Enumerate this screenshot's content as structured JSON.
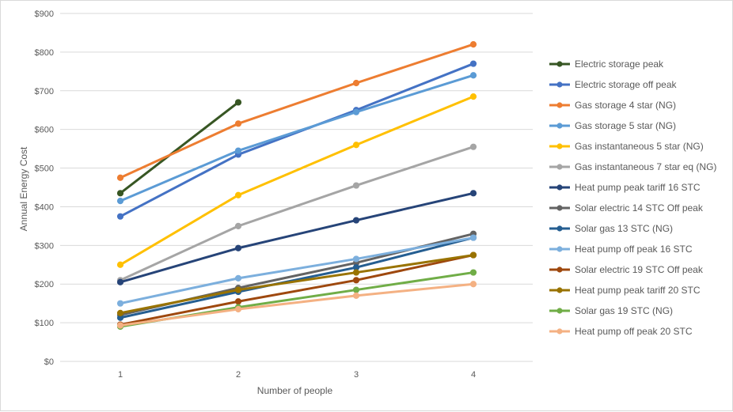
{
  "chart_data": {
    "type": "line",
    "title": "",
    "xlabel": "Number of people",
    "ylabel": "Annual Energy Cost",
    "x": [
      1,
      2,
      3,
      4
    ],
    "ylim": [
      0,
      900
    ],
    "ytick_step": 100,
    "ytick_labels": [
      "$0",
      "$100",
      "$200",
      "$300",
      "$400",
      "$500",
      "$600",
      "$700",
      "$800",
      "$900"
    ],
    "xtick_labels": [
      "1",
      "2",
      "3",
      "4"
    ],
    "grid": "horizontal",
    "legend_position": "right",
    "series": [
      {
        "name": "Electric storage peak",
        "color": "#375623",
        "values": [
          435,
          670,
          null,
          null
        ]
      },
      {
        "name": "Electric storage off peak",
        "color": "#4472C4",
        "values": [
          375,
          535,
          650,
          770
        ]
      },
      {
        "name": "Gas storage 4 star (NG)",
        "color": "#ED7D31",
        "values": [
          475,
          615,
          720,
          820
        ]
      },
      {
        "name": "Gas storage 5 star (NG)",
        "color": "#5B9BD5",
        "values": [
          415,
          545,
          645,
          740
        ]
      },
      {
        "name": "Gas instantaneous 5 star (NG)",
        "color": "#FFC000",
        "values": [
          250,
          430,
          560,
          685
        ]
      },
      {
        "name": "Gas instantaneous 7 star eq (NG)",
        "color": "#A5A5A5",
        "values": [
          210,
          350,
          455,
          555
        ]
      },
      {
        "name": "Heat pump peak tariff 16 STC",
        "color": "#264478",
        "values": [
          205,
          293,
          365,
          435
        ]
      },
      {
        "name": "Solar electric 14 STC Off peak",
        "color": "#636363",
        "values": [
          120,
          190,
          255,
          330
        ]
      },
      {
        "name": "Solar gas 13 STC (NG)",
        "color": "#255E91",
        "values": [
          113,
          180,
          243,
          320
        ]
      },
      {
        "name": "Heat pump off peak 16 STC",
        "color": "#7CAFDD",
        "values": [
          150,
          215,
          265,
          320
        ]
      },
      {
        "name": "Solar electric 19 STC Off peak",
        "color": "#9E480E",
        "values": [
          95,
          155,
          210,
          275
        ]
      },
      {
        "name": "Heat pump peak tariff 20 STC",
        "color": "#997300",
        "values": [
          125,
          185,
          230,
          275
        ]
      },
      {
        "name": "Solar gas 19 STC (NG)",
        "color": "#70AD47",
        "values": [
          90,
          140,
          185,
          230
        ]
      },
      {
        "name": "Heat pump off peak 20 STC",
        "color": "#F4B183",
        "values": [
          93,
          135,
          170,
          200
        ]
      }
    ]
  }
}
